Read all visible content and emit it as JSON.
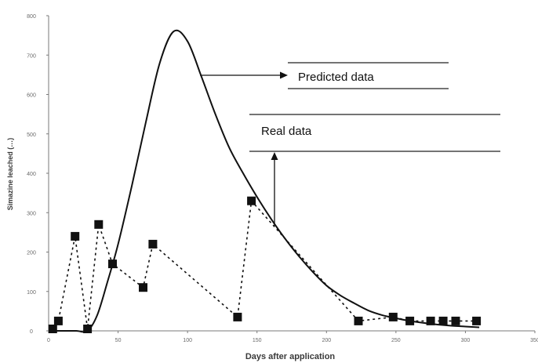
{
  "chart_data": {
    "type": "line",
    "xlabel": "Days after application",
    "ylabel": "Simazine leached (…)",
    "xlim": [
      0,
      350
    ],
    "ylim": [
      0,
      800
    ],
    "x_ticks": [
      "0",
      "50",
      "100",
      "150",
      "200",
      "250",
      "300",
      "350"
    ],
    "y_ticks": [
      "0",
      "100",
      "200",
      "300",
      "400",
      "500",
      "600",
      "700",
      "800"
    ],
    "grid": false,
    "series": [
      {
        "name": "Predicted data",
        "style": "solid-line",
        "x": [
          0,
          10,
          20,
          28,
          35,
          42,
          50,
          60,
          70,
          80,
          90,
          100,
          110,
          120,
          130,
          140,
          150,
          160,
          170,
          180,
          190,
          200,
          210,
          220,
          230,
          240,
          250,
          260,
          270,
          280,
          290,
          300,
          310
        ],
        "y": [
          0,
          0,
          0,
          0,
          40,
          120,
          220,
          370,
          530,
          680,
          760,
          735,
          645,
          550,
          465,
          400,
          340,
          285,
          235,
          190,
          150,
          115,
          90,
          70,
          52,
          40,
          32,
          25,
          20,
          16,
          13,
          11,
          9
        ]
      },
      {
        "name": "Real data",
        "style": "dotted-line-square-markers",
        "x": [
          3,
          7,
          19,
          28,
          36,
          46,
          68,
          75,
          136,
          146,
          223,
          248,
          260,
          275,
          284,
          293,
          308
        ],
        "y": [
          5,
          25,
          240,
          5,
          270,
          170,
          110,
          220,
          35,
          330,
          25,
          35,
          25,
          25,
          25,
          25,
          25
        ]
      }
    ],
    "annotations": [
      "Predicted data",
      "Real data"
    ],
    "colors": {
      "line": "#111111",
      "marker": "#111111",
      "axis": "#7a7a7a",
      "tick_label": "#6a6a6a"
    }
  }
}
